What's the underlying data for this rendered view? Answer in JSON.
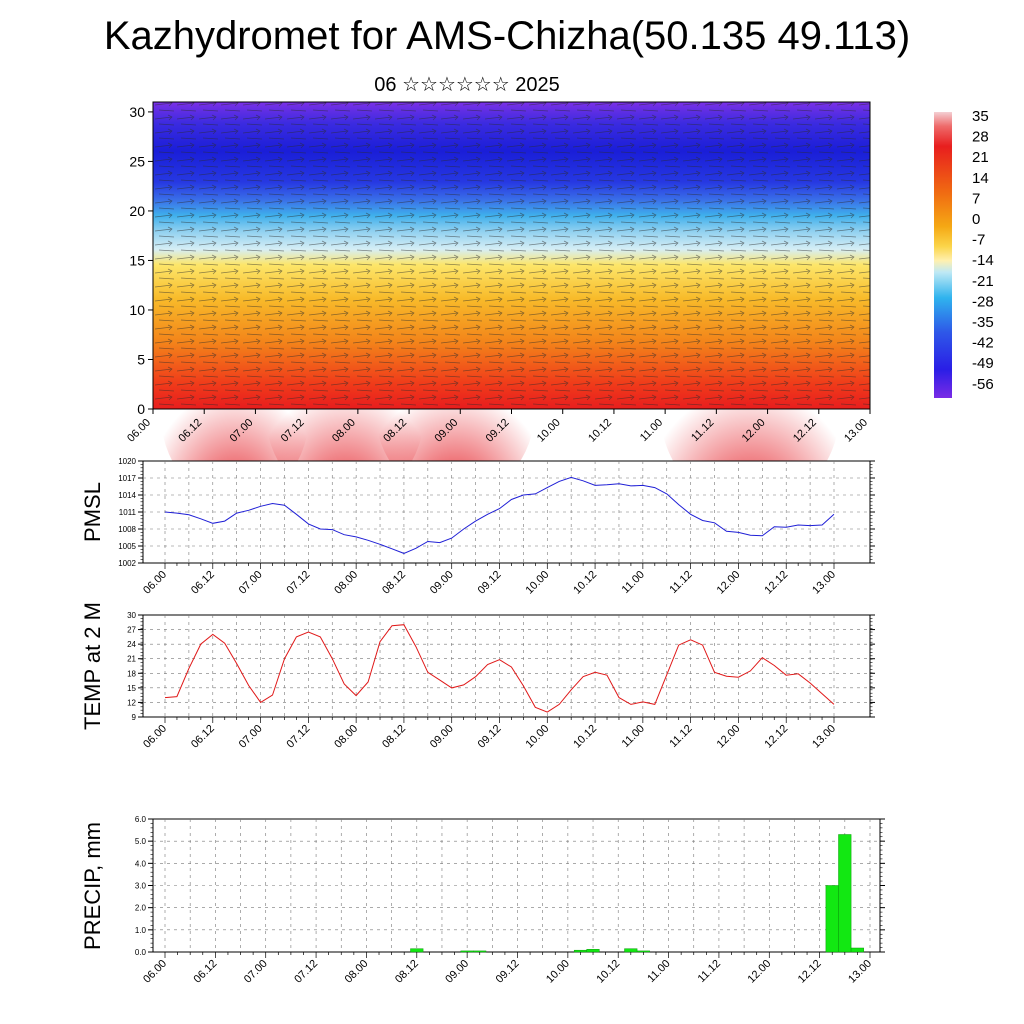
{
  "header": {
    "title": "Kazhydromet for AMS-Chizha(50.135 49.113)",
    "subtitle": "06 ☆☆☆☆☆☆ 2025"
  },
  "colorbar": {
    "labels": [
      "35",
      "28",
      "21",
      "14",
      "7",
      "0",
      "-7",
      "-14",
      "-21",
      "-28",
      "-35",
      "-42",
      "-49",
      "-56"
    ],
    "stops": [
      "#f4cfd3",
      "#e81e1e",
      "#f06a12",
      "#f5a814",
      "#fbd54a",
      "#fff0b0",
      "#bfe9f5",
      "#2fb3ee",
      "#2e58e8",
      "#2a1ee6",
      "#7a2be6"
    ]
  },
  "chart_data": [
    {
      "type": "heatmap",
      "name": "cross-section",
      "x_ticks": [
        "06.00",
        "06.12",
        "07.00",
        "07.12",
        "08.00",
        "08.12",
        "09.00",
        "09.12",
        "10.00",
        "10.12",
        "11.00",
        "11.12",
        "12.00",
        "12.12",
        "13.00"
      ],
      "y_ticks": [
        "0",
        "5",
        "10",
        "15",
        "20",
        "25",
        "30"
      ],
      "ylim": [
        0,
        31
      ]
    },
    {
      "type": "line",
      "name": "pmsl",
      "ylabel": "PMSL",
      "color": "#1f1fd6",
      "x_ticks": [
        "06.00",
        "06.12",
        "07.00",
        "07.12",
        "08.00",
        "08.12",
        "09.00",
        "09.12",
        "10.00",
        "10.12",
        "11.00",
        "11.12",
        "12.00",
        "12.12",
        "13.00"
      ],
      "y_ticks": [
        "1002",
        "1005",
        "1008",
        "1011",
        "1014",
        "1017",
        "1020"
      ],
      "ylim": [
        1002,
        1020
      ],
      "x": [
        0,
        3,
        6,
        9,
        12,
        15,
        18,
        21,
        24,
        27,
        30,
        33,
        36,
        39,
        42,
        45,
        48,
        51,
        54,
        57,
        60,
        63,
        66,
        69,
        72,
        75,
        78,
        81,
        84,
        87,
        90,
        93,
        96,
        99,
        102,
        105,
        108,
        111,
        114,
        117,
        120,
        123,
        126,
        129,
        132,
        135,
        138,
        141,
        144,
        147,
        150,
        153,
        156,
        159,
        162,
        165,
        168
      ],
      "values": [
        1011,
        1010.8,
        1010.5,
        1009.8,
        1009,
        1009.4,
        1010.8,
        1011.3,
        1012,
        1012.5,
        1012.2,
        1010.6,
        1008.9,
        1008,
        1007.9,
        1007,
        1006.6,
        1006,
        1005.3,
        1004.5,
        1003.7,
        1004.6,
        1005.8,
        1005.6,
        1006.4,
        1008,
        1009.4,
        1010.6,
        1011.6,
        1013.2,
        1014,
        1014.2,
        1015.3,
        1016.4,
        1017.1,
        1016.5,
        1015.7,
        1015.8,
        1016,
        1015.6,
        1015.7,
        1015.3,
        1014.2,
        1012.3,
        1010.6,
        1009.5,
        1009.1,
        1007.6,
        1007.4,
        1006.9,
        1006.8,
        1008.4,
        1008.3,
        1008.7,
        1008.6,
        1008.7,
        1010.6
      ]
    },
    {
      "type": "line",
      "name": "temp",
      "ylabel": "TEMP at 2 M",
      "color": "#e01818",
      "x_ticks": [
        "06.00",
        "06.12",
        "07.00",
        "07.12",
        "08.00",
        "08.12",
        "09.00",
        "09.12",
        "10.00",
        "10.12",
        "11.00",
        "11.12",
        "12.00",
        "12.12",
        "13.00"
      ],
      "y_ticks": [
        "9",
        "12",
        "15",
        "18",
        "21",
        "24",
        "27",
        "30"
      ],
      "ylim": [
        9,
        30
      ],
      "x": [
        0,
        3,
        6,
        9,
        12,
        15,
        18,
        21,
        24,
        27,
        30,
        33,
        36,
        39,
        42,
        45,
        48,
        51,
        54,
        57,
        60,
        63,
        66,
        69,
        72,
        75,
        78,
        81,
        84,
        87,
        90,
        93,
        96,
        99,
        102,
        105,
        108,
        111,
        114,
        117,
        120,
        123,
        126,
        129,
        132,
        135,
        138,
        141,
        144,
        147,
        150,
        153,
        156,
        159,
        162,
        165,
        168
      ],
      "values": [
        13,
        13.2,
        19,
        24,
        26,
        24.2,
        20,
        15.5,
        12,
        13.5,
        21,
        25.5,
        26.5,
        25.5,
        21,
        15.8,
        13.4,
        16.2,
        24.5,
        27.8,
        28,
        23.5,
        18.2,
        16.6,
        15,
        15.6,
        17.3,
        19.8,
        20.8,
        19.3,
        15.4,
        11,
        10,
        11.6,
        14.6,
        17.3,
        18.2,
        17.6,
        13,
        11.6,
        12.1,
        11.6,
        17.7,
        23.8,
        24.9,
        23.8,
        18.2,
        17.4,
        17.2,
        18.5,
        21.2,
        19.6,
        17.6,
        17.9,
        16,
        13.8,
        11.6
      ]
    },
    {
      "type": "bar",
      "name": "precip",
      "ylabel": "PRECIP, mm",
      "color": "#12e812",
      "x_ticks": [
        "06.00",
        "06.12",
        "07.00",
        "07.12",
        "08.00",
        "08.12",
        "09.00",
        "09.12",
        "10.00",
        "10.12",
        "11.00",
        "11.12",
        "12.00",
        "12.12",
        "13.00"
      ],
      "y_ticks": [
        "0.0",
        "1.0",
        "2.0",
        "3.0",
        "4.0",
        "5.0",
        "6.0"
      ],
      "ylim": [
        0,
        6
      ],
      "x": [
        60,
        72,
        75,
        99,
        102,
        111,
        114,
        159,
        162,
        165
      ],
      "values": [
        0.15,
        0.05,
        0.05,
        0.08,
        0.12,
        0.15,
        0.05,
        3.0,
        5.3,
        0.18
      ]
    }
  ]
}
